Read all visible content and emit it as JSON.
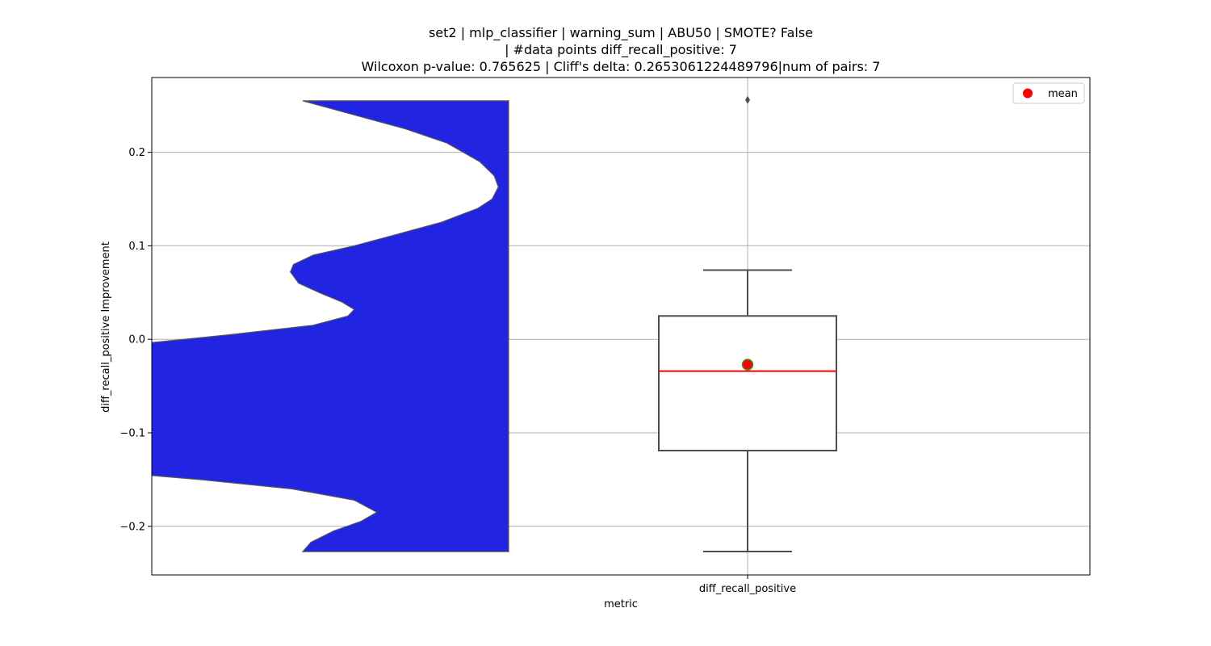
{
  "chart_data": {
    "type": "violin+box",
    "title_lines": [
      "set2 | mlp_classifier | warning_sum | ABU50 | SMOTE? False",
      "| #data points diff_recall_positive: 7",
      "Wilcoxon p-value: 0.765625 | Cliff's delta: 0.2653061224489796|num of pairs: 7"
    ],
    "xlabel": "metric",
    "ylabel": "diff_recall_positive Improvement",
    "categories": [
      "diff_recall_positive"
    ],
    "ylim": [
      -0.252,
      0.28
    ],
    "yticks": [
      -0.2,
      -0.1,
      0.0,
      0.1,
      0.2
    ],
    "ytick_labels": [
      "−0.2",
      "−0.1",
      "0.0",
      "0.1",
      "0.2"
    ],
    "grid": true,
    "legend": {
      "placement": "top-right",
      "entries": [
        {
          "label": "mean",
          "color": "#ff0000"
        }
      ]
    },
    "violin": {
      "color": "#2124e0",
      "edge_color": "#555555",
      "y_range": [
        -0.227,
        0.255
      ],
      "density_profile": [
        [
          0.255,
          0.0
        ],
        [
          0.24,
          0.25
        ],
        [
          0.225,
          0.5
        ],
        [
          0.21,
          0.7
        ],
        [
          0.19,
          0.86
        ],
        [
          0.175,
          0.93
        ],
        [
          0.163,
          0.95
        ],
        [
          0.15,
          0.92
        ],
        [
          0.14,
          0.85
        ],
        [
          0.125,
          0.67
        ],
        [
          0.11,
          0.42
        ],
        [
          0.1,
          0.25
        ],
        [
          0.09,
          0.05
        ],
        [
          0.08,
          -0.045
        ],
        [
          0.072,
          -0.06
        ],
        [
          0.06,
          -0.02
        ],
        [
          0.05,
          0.08
        ],
        [
          0.04,
          0.19
        ],
        [
          0.032,
          0.25
        ],
        [
          0.025,
          0.22
        ],
        [
          0.015,
          0.05
        ],
        [
          0.005,
          -0.35
        ],
        [
          -0.005,
          -0.8
        ],
        [
          -0.013,
          -1.05
        ],
        [
          -0.03,
          -1.3
        ],
        [
          -0.05,
          -1.45
        ],
        [
          -0.06,
          -1.2
        ],
        [
          -0.074,
          -0.95
        ],
        [
          -0.085,
          -1.2
        ],
        [
          -0.097,
          -1.45
        ],
        [
          -0.12,
          -1.45
        ],
        [
          -0.137,
          -1.2
        ],
        [
          -0.15,
          -0.5
        ],
        [
          -0.16,
          -0.05
        ],
        [
          -0.172,
          0.25
        ],
        [
          -0.185,
          0.36
        ],
        [
          -0.195,
          0.28
        ],
        [
          -0.205,
          0.15
        ],
        [
          -0.217,
          0.04
        ],
        [
          -0.227,
          0.0
        ]
      ]
    },
    "box": {
      "whisker_low": -0.227,
      "q1": -0.119,
      "median": -0.034,
      "q3": 0.025,
      "whisker_high": 0.074,
      "mean": -0.027,
      "outliers": [
        0.256
      ],
      "box_edge_color": "#4d4d4d",
      "median_color": "#ff0000",
      "mean_color": "#ff0000",
      "mean_edge_color": "#2ca02c"
    }
  }
}
